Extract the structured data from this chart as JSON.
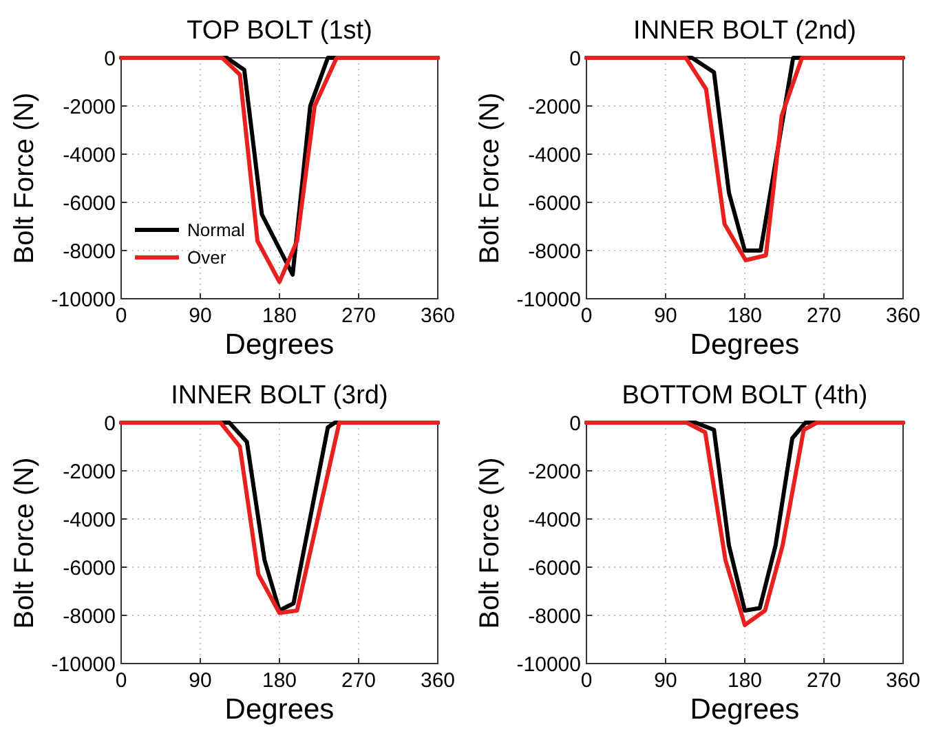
{
  "chart_data": [
    {
      "type": "line",
      "title": "TOP BOLT (1st)",
      "xlabel": "Degrees",
      "ylabel": "Bolt Force (N)",
      "xlim": [
        0,
        360
      ],
      "xticks": [
        0,
        90,
        180,
        270,
        360
      ],
      "ylim": [
        -10000,
        0
      ],
      "yticks": [
        -10000,
        -8000,
        -6000,
        -4000,
        -2000,
        0
      ],
      "grid": true,
      "legend": "bottom left",
      "series": [
        {
          "name": "Normal",
          "color": "#000000",
          "x": [
            0,
            120,
            140,
            160,
            195,
            215,
            235,
            360
          ],
          "values": [
            0,
            0,
            -500,
            -6500,
            -9000,
            -2000,
            0,
            0
          ]
        },
        {
          "name": "Over",
          "color": "#e8201e",
          "x": [
            0,
            115,
            135,
            155,
            180,
            200,
            220,
            245,
            360
          ],
          "values": [
            0,
            0,
            -700,
            -7600,
            -9300,
            -7600,
            -2000,
            0,
            0
          ]
        }
      ]
    },
    {
      "type": "line",
      "title": "INNER BOLT (2nd)",
      "xlabel": "Degrees",
      "ylabel": "Bolt Force (N)",
      "xlim": [
        0,
        360
      ],
      "xticks": [
        0,
        90,
        180,
        270,
        360
      ],
      "ylim": [
        -10000,
        0
      ],
      "yticks": [
        -10000,
        -8000,
        -6000,
        -4000,
        -2000,
        0
      ],
      "grid": true,
      "series": [
        {
          "color": "#000000",
          "x": [
            0,
            120,
            145,
            162,
            180,
            198,
            217,
            235,
            360
          ],
          "values": [
            0,
            0,
            -600,
            -5600,
            -8000,
            -8000,
            -3900,
            0,
            0
          ]
        },
        {
          "color": "#e8201e",
          "x": [
            0,
            113,
            136,
            157,
            181,
            204,
            222,
            245,
            360
          ],
          "values": [
            0,
            0,
            -1300,
            -6900,
            -8400,
            -8200,
            -2400,
            0,
            0
          ]
        }
      ]
    },
    {
      "type": "line",
      "title": "INNER BOLT (3rd)",
      "xlabel": "Degrees",
      "ylabel": "Bolt Force (N)",
      "xlim": [
        0,
        360
      ],
      "xticks": [
        0,
        90,
        180,
        270,
        360
      ],
      "ylim": [
        -10000,
        0
      ],
      "yticks": [
        -10000,
        -8000,
        -6000,
        -4000,
        -2000,
        0
      ],
      "grid": true,
      "series": [
        {
          "color": "#000000",
          "x": [
            0,
            123,
            143,
            163,
            180,
            196,
            235,
            243,
            360
          ],
          "values": [
            0,
            0,
            -800,
            -5700,
            -7800,
            -7500,
            -200,
            0,
            0
          ]
        },
        {
          "color": "#e8201e",
          "x": [
            0,
            113,
            135,
            156,
            180,
            200,
            248,
            360
          ],
          "values": [
            0,
            0,
            -1000,
            -6300,
            -7900,
            -7800,
            0,
            0
          ]
        }
      ]
    },
    {
      "type": "line",
      "title": "BOTTOM BOLT (4th)",
      "xlabel": "Degrees",
      "ylabel": "Bolt Force (N)",
      "xlim": [
        0,
        360
      ],
      "xticks": [
        0,
        90,
        180,
        270,
        360
      ],
      "ylim": [
        -10000,
        0
      ],
      "yticks": [
        -10000,
        -8000,
        -6000,
        -4000,
        -2000,
        0
      ],
      "grid": true,
      "series": [
        {
          "color": "#000000",
          "x": [
            0,
            124,
            145,
            162,
            180,
            197,
            215,
            234,
            249,
            360
          ],
          "values": [
            0,
            0,
            -300,
            -5100,
            -7800,
            -7700,
            -5100,
            -650,
            0,
            0
          ]
        },
        {
          "color": "#e8201e",
          "x": [
            0,
            114,
            135,
            158,
            180,
            203,
            223,
            247,
            262,
            360
          ],
          "values": [
            0,
            0,
            -400,
            -5700,
            -8400,
            -7800,
            -5100,
            -300,
            0,
            0
          ]
        }
      ]
    }
  ]
}
